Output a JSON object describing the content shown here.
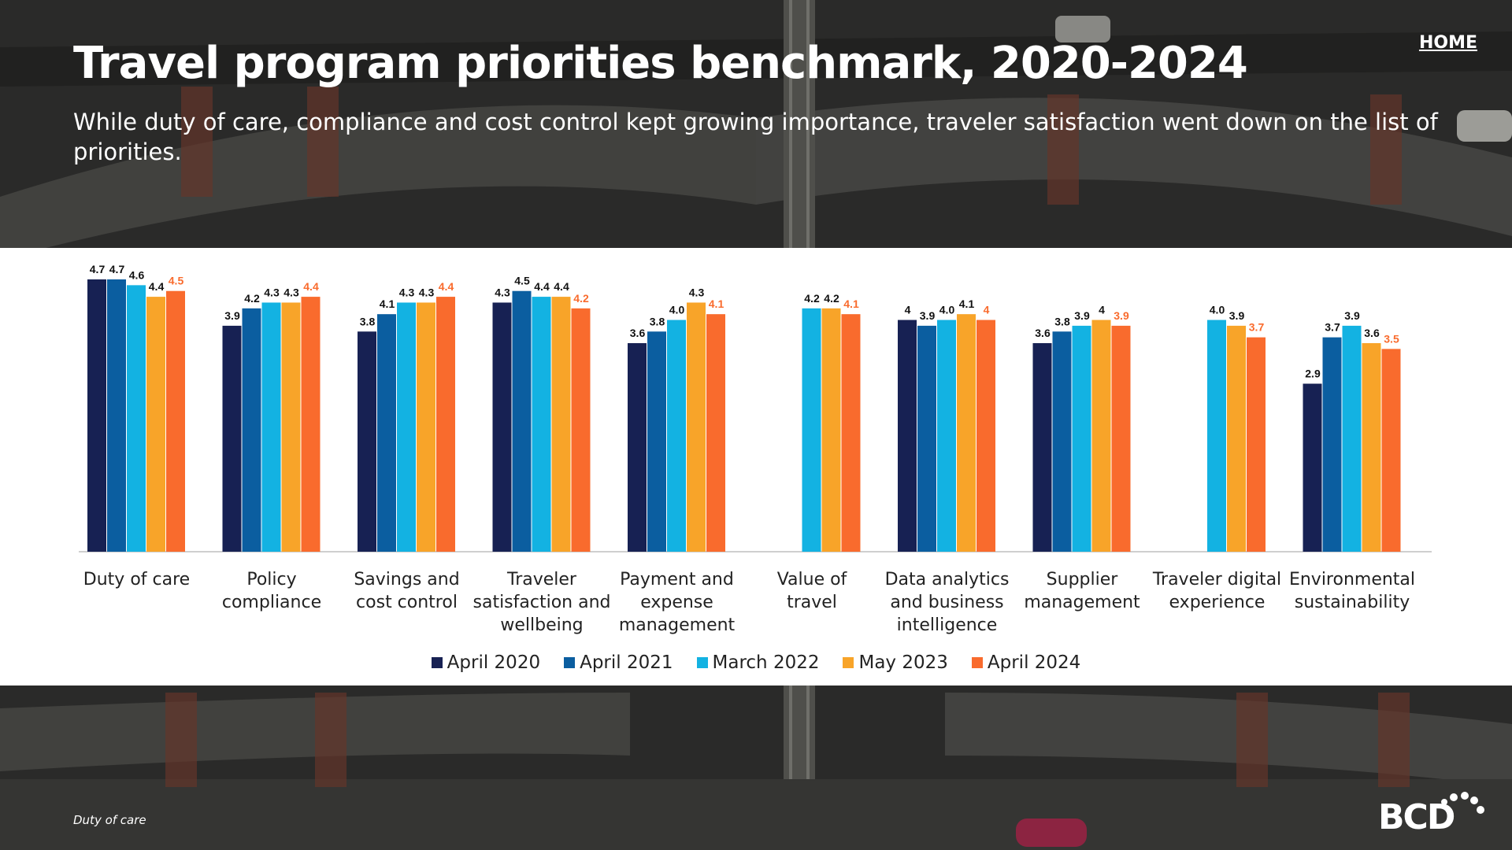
{
  "header": {
    "title": "Travel program priorities benchmark, 2020-2024",
    "subtitle": "While duty of care, compliance and cost control kept growing importance, traveler satisfaction went down on the list of priorities.",
    "home_label": "HOME"
  },
  "footer": {
    "section_label": "Duty of care",
    "logo_text": "BCD"
  },
  "colors": {
    "April 2020": "#172153",
    "April 2021": "#0b5ea0",
    "March 2022": "#13b2e2",
    "May 2023": "#f8a429",
    "April 2024": "#f96b2d",
    "highlight_label": "#f96b2d"
  },
  "chart_data": {
    "type": "bar",
    "title": "Travel program priorities benchmark, 2020-2024",
    "xlabel": "",
    "ylabel": "",
    "ylim": [
      0,
      4.7
    ],
    "categories": [
      "Duty of care",
      "Policy compliance",
      "Savings and cost control",
      "Traveler satisfaction and wellbeing",
      "Payment and expense management",
      "Value of travel",
      "Data analytics and business intelligence",
      "Supplier management",
      "Traveler digital experience",
      "Environmental sustainability"
    ],
    "category_lines": [
      [
        "Duty of care"
      ],
      [
        "Policy",
        "compliance"
      ],
      [
        "Savings and",
        "cost control"
      ],
      [
        "Traveler",
        "satisfaction and",
        "wellbeing"
      ],
      [
        "Payment and",
        "expense",
        "management"
      ],
      [
        "Value of",
        "travel"
      ],
      [
        "Data analytics",
        "and business",
        "intelligence"
      ],
      [
        "Supplier",
        "management"
      ],
      [
        "Traveler digital",
        "experience"
      ],
      [
        "Environmental",
        "sustainability"
      ]
    ],
    "series": [
      {
        "name": "April 2020",
        "values": [
          4.7,
          3.9,
          3.8,
          4.3,
          3.6,
          null,
          4.0,
          3.6,
          null,
          2.9
        ],
        "labels": [
          "4.7",
          "3.9",
          "3.8",
          "4.3",
          "3.6",
          null,
          "4",
          "3.6",
          null,
          "2.9"
        ]
      },
      {
        "name": "April 2021",
        "values": [
          4.7,
          4.2,
          4.1,
          4.5,
          3.8,
          null,
          3.9,
          3.8,
          null,
          3.7
        ],
        "labels": [
          "4.7",
          "4.2",
          "4.1",
          "4.5",
          "3.8",
          null,
          "3.9",
          "3.8",
          null,
          "3.7"
        ]
      },
      {
        "name": "March 2022",
        "values": [
          4.6,
          4.3,
          4.3,
          4.4,
          4.0,
          4.2,
          4.0,
          3.9,
          4.0,
          3.9
        ],
        "labels": [
          "4.6",
          "4.3",
          "4.3",
          "4.4",
          "4.0",
          "4.2",
          "4.0",
          "3.9",
          "4.0",
          "3.9"
        ]
      },
      {
        "name": "May 2023",
        "values": [
          4.4,
          4.3,
          4.3,
          4.4,
          4.3,
          4.2,
          4.1,
          4.0,
          3.9,
          3.6
        ],
        "labels": [
          "4.4",
          "4.3",
          "4.3",
          "4.4",
          "4.3",
          "4.2",
          "4.1",
          "4",
          "3.9",
          "3.6"
        ]
      },
      {
        "name": "April 2024",
        "values": [
          4.5,
          4.4,
          4.4,
          4.2,
          4.1,
          4.1,
          4.0,
          3.9,
          3.7,
          3.5
        ],
        "labels": [
          "4.5",
          "4.4",
          "4.4",
          "4.2",
          "4.1",
          "4.1",
          "4",
          "3.9",
          "3.7",
          "3.5"
        ]
      }
    ],
    "legend": [
      "April 2020",
      "April 2021",
      "March 2022",
      "May 2023",
      "April 2024"
    ],
    "legend_position": "bottom"
  }
}
